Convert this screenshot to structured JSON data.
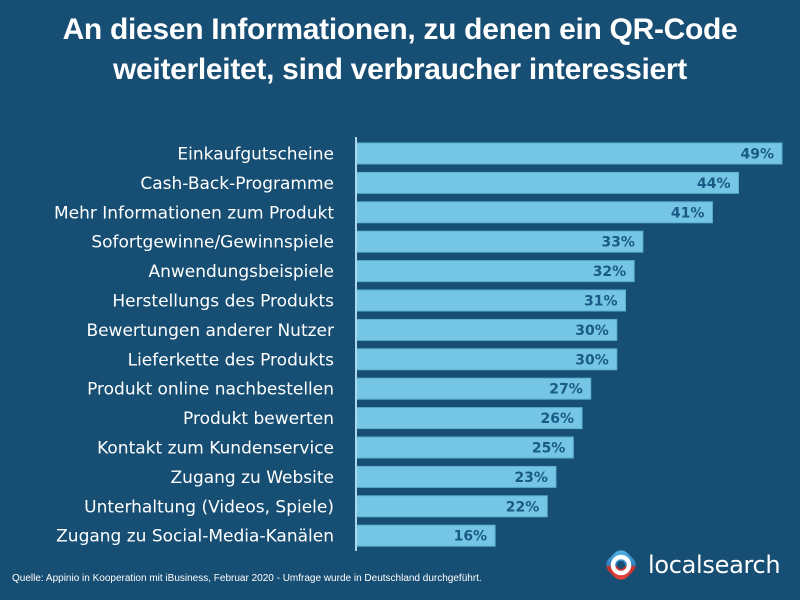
{
  "chart_data": {
    "type": "bar",
    "orientation": "horizontal",
    "title": "An diesen Informationen, zu denen ein QR-Code weiterleitet, sind verbraucher interessiert",
    "title_lines": [
      "An diesen Informationen, zu denen ein QR-Code",
      "weiterleitet, sind verbraucher interessiert"
    ],
    "categories": [
      "Einkaufgutscheine",
      "Cash-Back-Programme",
      "Mehr Informationen zum Produkt",
      "Sofortgewinne/Gewinnspiele",
      "Anwendungsbeispiele",
      "Herstellungs des Produkts",
      "Bewertungen anderer Nutzer",
      "Lieferkette des Produkts",
      "Produkt online nachbestellen",
      "Produkt bewerten",
      "Kontakt zum Kundenservice",
      "Zugang zu Website",
      "Unterhaltung (Videos, Spiele)",
      "Zugang zu Social-Media-Kanälen"
    ],
    "values": [
      49,
      44,
      41,
      33,
      32,
      31,
      30,
      30,
      27,
      26,
      25,
      23,
      22,
      16
    ],
    "value_suffix": "%",
    "xlabel": "",
    "ylabel": "",
    "xlim": [
      0,
      49
    ],
    "grid": false,
    "legend": "none",
    "colors": {
      "background": "#174e73",
      "bar": "#74c6e4",
      "bar_border": "#5aaed0",
      "value_text": "#1a5a86",
      "axis": "#a9d8ec",
      "text": "#ffffff"
    }
  },
  "footer": {
    "source": "Quelle: Appinio in Kooperation mit iBusiness, Februar 2020 - Umfrage wurde in Deutschland durchgeführt."
  },
  "brand": {
    "name": "localsearch",
    "icon": "localsearch-logo-icon",
    "colors": {
      "blue": "#3aa0dc",
      "red": "#e8352f",
      "ring": "#ffffff"
    }
  }
}
